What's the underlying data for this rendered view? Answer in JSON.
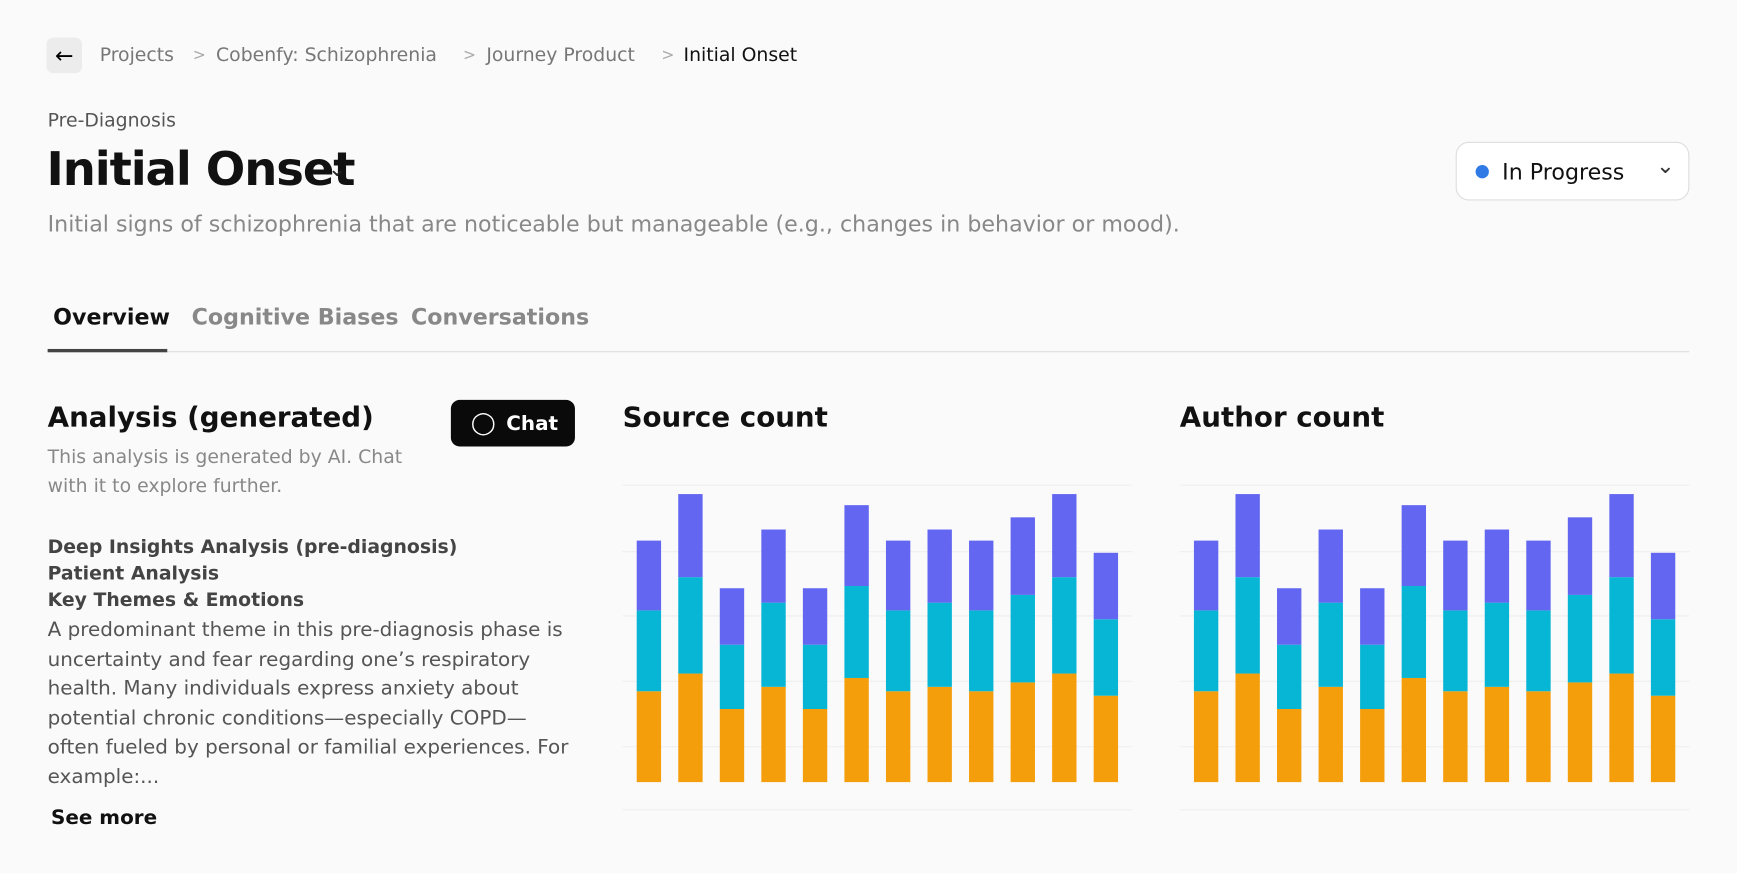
{
  "breadcrumbs": [
    "Projects",
    "Cobenfy: Schizophrenia",
    "Journey Product",
    "Initial Onset"
  ],
  "header": {
    "stage": "Pre-Diagnosis",
    "title": "Initial Onset",
    "description": "Initial signs of schizophrenia that are noticeable but manageable (e.g., changes in behavior or mood).",
    "status": "In Progress"
  },
  "tabs": [
    "Overview",
    "Cognitive Biases",
    "Conversations"
  ],
  "analysis": {
    "title": "Analysis (generated)",
    "chat_button": "Chat",
    "note": "This analysis is generated by AI. Chat with it to explore further.",
    "headings": [
      "Deep Insights Analysis (pre-diagnosis)",
      "Patient Analysis",
      "Key Themes & Emotions"
    ],
    "body": "A predominant theme in this pre-diagnosis phase is uncertainty and fear regarding one’s respiratory health. Many individuals express anxiety about potential chronic conditions—especially COPD—often fueled by personal or familial experiences. For example:...",
    "see_more": "See more"
  },
  "chart_data": [
    {
      "type": "bar",
      "stacked": true,
      "title": "Source count",
      "ylim": [
        0,
        276
      ],
      "series": [
        {
          "color": "#f59e0b",
          "values": [
            82,
            98,
            66,
            86,
            66,
            94,
            82,
            86,
            82,
            90,
            98,
            78
          ]
        },
        {
          "color": "#06b6d4",
          "values": [
            73,
            87,
            58,
            76,
            58,
            83,
            73,
            76,
            73,
            79,
            87,
            69
          ]
        },
        {
          "color": "#6366f1",
          "values": [
            63,
            75,
            51,
            66,
            51,
            73,
            63,
            66,
            63,
            70,
            75,
            60
          ]
        }
      ]
    },
    {
      "type": "bar",
      "stacked": true,
      "title": "Author count",
      "ylim": [
        0,
        276
      ],
      "series": [
        {
          "color": "#f59e0b",
          "values": [
            82,
            98,
            66,
            86,
            66,
            94,
            82,
            86,
            82,
            90,
            98,
            78
          ]
        },
        {
          "color": "#06b6d4",
          "values": [
            73,
            87,
            58,
            76,
            58,
            83,
            73,
            76,
            73,
            79,
            87,
            69
          ]
        },
        {
          "color": "#6366f1",
          "values": [
            63,
            75,
            51,
            66,
            51,
            73,
            63,
            66,
            63,
            70,
            75,
            60
          ]
        }
      ]
    }
  ]
}
